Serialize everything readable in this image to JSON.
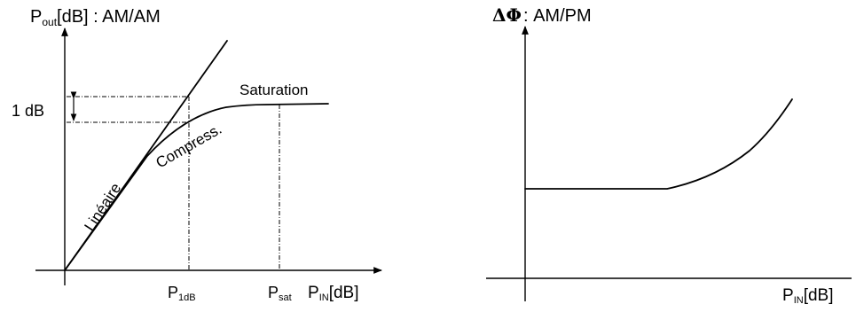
{
  "left_panel": {
    "y_label_main": "P",
    "y_label_sub": "out",
    "y_label_suffix": "[dB] : AM/AM",
    "delta_label": "1 dB",
    "x_tick1_main": "P",
    "x_tick1_sub": "1dB",
    "x_tick2_main": "P",
    "x_tick2_sub": "sat",
    "x_label_main": "P",
    "x_label_sub": "IN",
    "x_label_suffix": "[dB]",
    "region_linear": "Linéaire",
    "region_compression": "Compress.",
    "region_saturation": "Saturation"
  },
  "right_panel": {
    "y_label_symbol": "ΔΦ",
    "y_label_suffix": ": AM/PM",
    "x_label_main": "P",
    "x_label_sub": "IN",
    "x_label_suffix": "[dB]"
  }
}
